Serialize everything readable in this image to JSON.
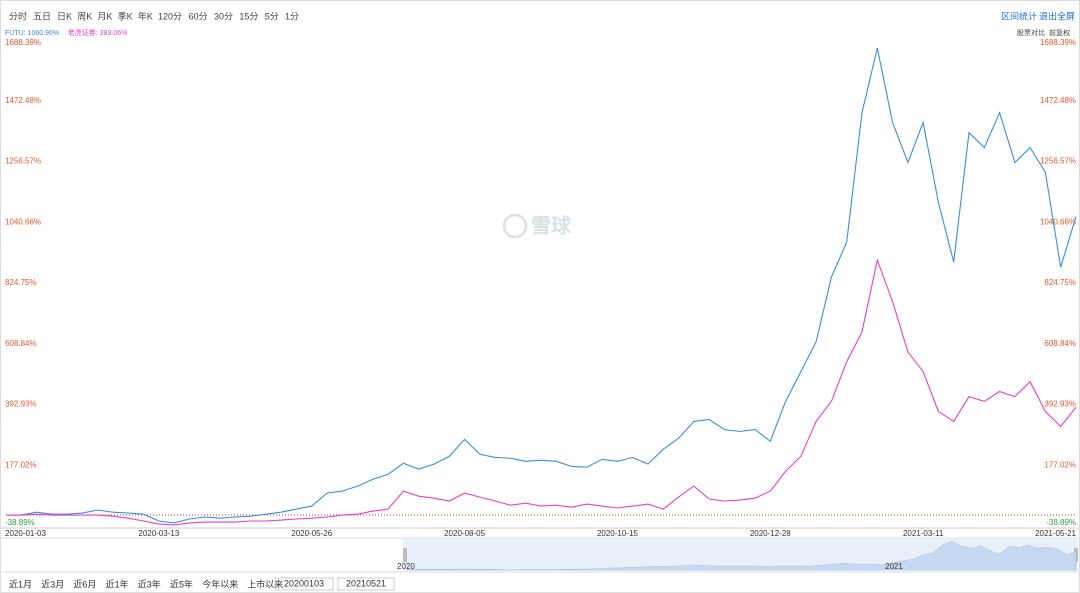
{
  "toolbar": {
    "periods": [
      "分时",
      "五日",
      "日K",
      "周K",
      "月K",
      "季K",
      "年K",
      "120分",
      "60分",
      "30分",
      "15分",
      "5分",
      "1分"
    ],
    "right": [
      "区间统计",
      "退出全屏"
    ],
    "compare": [
      "股票对比",
      "前复权"
    ]
  },
  "watermark": "雪球",
  "chart_data": {
    "type": "line",
    "categories": [
      "2020-01-03",
      null,
      null,
      null,
      null,
      null,
      null,
      null,
      null,
      null,
      "2020-03-13",
      null,
      null,
      null,
      null,
      null,
      null,
      null,
      null,
      null,
      "2020-05-26",
      null,
      null,
      null,
      null,
      null,
      null,
      null,
      null,
      null,
      "2020-08-05",
      null,
      null,
      null,
      null,
      null,
      null,
      null,
      null,
      null,
      "2020-10-15",
      null,
      null,
      null,
      null,
      null,
      null,
      null,
      null,
      null,
      "2020-12-28",
      null,
      null,
      null,
      null,
      null,
      null,
      null,
      null,
      null,
      "2021-03-11",
      null,
      null,
      null,
      null,
      null,
      null,
      null,
      null,
      null,
      "2021-05-21"
    ],
    "series": [
      {
        "name": "FUTU: 1060.96%",
        "color": "#3a8fd9",
        "values": [
          0,
          0,
          10,
          3,
          3,
          7,
          18,
          10,
          7,
          3,
          -21,
          -28,
          -14,
          -7,
          -11,
          -7,
          -4,
          3,
          10,
          21,
          32,
          78,
          85,
          103,
          127,
          145,
          184,
          163,
          181,
          209,
          269,
          216,
          205,
          202,
          191,
          195,
          191,
          173,
          170,
          198,
          191,
          205,
          181,
          234,
          273,
          333,
          340,
          304,
          297,
          304,
          262,
          404,
          510,
          616,
          846,
          970,
          1430,
          1660,
          1395,
          1253,
          1395,
          1112,
          899,
          1359,
          1306,
          1430,
          1253,
          1306,
          1218,
          881,
          1060.96
        ]
      },
      {
        "name": "老虎证券: 383.06%",
        "color": "#e83ec8",
        "values": [
          0,
          0,
          3,
          0,
          0,
          0,
          0,
          -4,
          -11,
          -21,
          -32,
          -35,
          -28,
          -25,
          -25,
          -25,
          -21,
          -21,
          -18,
          -14,
          -11,
          -7,
          0,
          3,
          14,
          21,
          85,
          67,
          60,
          50,
          78,
          64,
          50,
          35,
          42,
          32,
          35,
          28,
          39,
          32,
          25,
          32,
          39,
          21,
          64,
          103,
          57,
          50,
          53,
          60,
          85,
          156,
          209,
          333,
          404,
          545,
          651,
          906,
          758,
          580,
          510,
          368,
          333,
          421,
          404,
          439,
          421,
          474,
          368,
          315,
          383.06
        ]
      }
    ],
    "ylim": [
      -38.89,
      1688.39
    ],
    "yticks": [
      {
        "value": -38.89,
        "label": "-38.89%"
      },
      {
        "value": 177.02,
        "label": "177.02%"
      },
      {
        "value": 392.93,
        "label": "392.93%"
      },
      {
        "value": 608.84,
        "label": "608.84%"
      },
      {
        "value": 824.75,
        "label": "824.75%"
      },
      {
        "value": 1040.66,
        "label": "1040.66%"
      },
      {
        "value": 1256.57,
        "label": "1256.57%"
      },
      {
        "value": 1472.48,
        "label": "1472.48%"
      },
      {
        "value": 1688.39,
        "label": "1688.39%"
      }
    ],
    "baseline": 0,
    "navigator_labels": [
      "2020",
      "2021"
    ]
  },
  "range": {
    "buttons": [
      "近1月",
      "近3月",
      "近6月",
      "近1年",
      "近3年",
      "近5年",
      "今年以来",
      "上市以来"
    ],
    "start": "20200103",
    "end": "20210521"
  }
}
